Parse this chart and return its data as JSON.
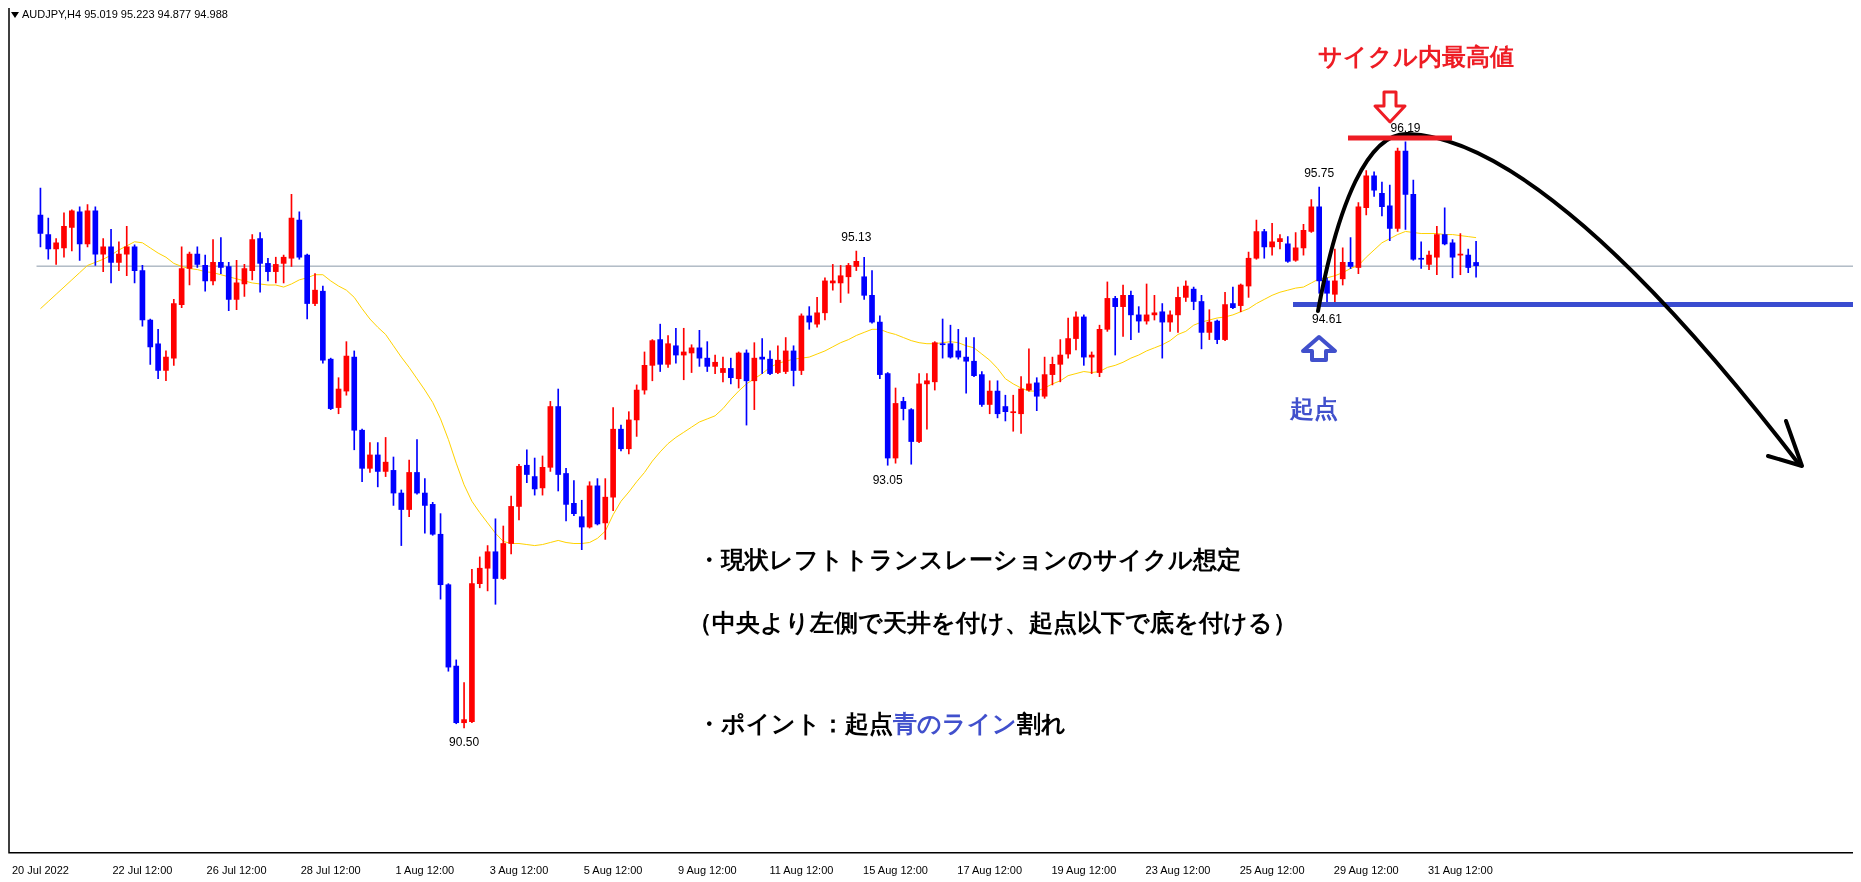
{
  "chart_data": {
    "type": "candlestick",
    "title": "AUDJPY,H4 95.019 95.223 94.877 94.988",
    "tick_labels": "x",
    "categories": [
      "20 Jul 2022",
      null,
      null,
      null,
      null,
      null,
      null,
      null,
      null,
      null,
      null,
      null,
      null,
      "22 Jul 12:00",
      null,
      null,
      null,
      null,
      null,
      null,
      null,
      null,
      null,
      null,
      null,
      "26 Jul 12:00",
      null,
      null,
      null,
      null,
      null,
      null,
      null,
      null,
      null,
      null,
      null,
      "28 Jul 12:00",
      null,
      null,
      null,
      null,
      null,
      null,
      null,
      null,
      null,
      null,
      null,
      "1 Aug 12:00",
      null,
      null,
      null,
      null,
      null,
      null,
      null,
      null,
      null,
      null,
      null,
      "3 Aug 12:00",
      null,
      null,
      null,
      null,
      null,
      null,
      null,
      null,
      null,
      null,
      null,
      "5 Aug 12:00",
      null,
      null,
      null,
      null,
      null,
      null,
      null,
      null,
      null,
      null,
      null,
      "9 Aug 12:00",
      null,
      null,
      null,
      null,
      null,
      null,
      null,
      null,
      null,
      null,
      null,
      "11 Aug 12:00",
      null,
      null,
      null,
      null,
      null,
      null,
      null,
      null,
      null,
      null,
      null,
      "15 Aug 12:00",
      null,
      null,
      null,
      null,
      null,
      null,
      null,
      null,
      null,
      null,
      null,
      "17 Aug 12:00",
      null,
      null,
      null,
      null,
      null,
      null,
      null,
      null,
      null,
      null,
      null,
      "19 Aug 12:00",
      null,
      null,
      null,
      null,
      null,
      null,
      null,
      null,
      null,
      null,
      null,
      "23 Aug 12:00",
      null,
      null,
      null,
      null,
      null,
      null,
      null,
      null,
      null,
      null,
      null,
      "25 Aug 12:00",
      null,
      null,
      null,
      null,
      null,
      null,
      null,
      null,
      null,
      null,
      null,
      "29 Aug 12:00",
      null,
      null,
      null,
      null,
      null,
      null,
      null,
      null,
      null,
      null,
      null,
      "31 Aug 12:00",
      null,
      null
    ],
    "ohlc": [
      [
        95.48,
        95.74,
        95.17,
        95.3
      ],
      [
        95.29,
        95.45,
        95.05,
        95.15
      ],
      [
        95.15,
        95.25,
        95.0,
        95.21
      ],
      [
        95.16,
        95.5,
        95.07,
        95.37
      ],
      [
        95.36,
        95.53,
        95.13,
        95.52
      ],
      [
        95.51,
        95.56,
        95.04,
        95.2
      ],
      [
        95.2,
        95.58,
        95.17,
        95.52
      ],
      [
        95.52,
        95.56,
        94.99,
        95.1
      ],
      [
        95.1,
        95.25,
        94.93,
        95.17
      ],
      [
        95.17,
        95.34,
        94.82,
        95.02
      ],
      [
        95.02,
        95.22,
        94.94,
        95.1
      ],
      [
        95.1,
        95.37,
        94.89,
        95.17
      ],
      [
        95.17,
        95.19,
        94.82,
        94.94
      ],
      [
        94.94,
        94.99,
        94.4,
        94.46
      ],
      [
        94.46,
        94.47,
        94.03,
        94.2
      ],
      [
        94.23,
        94.37,
        93.89,
        93.97
      ],
      [
        93.97,
        94.16,
        93.87,
        94.1
      ],
      [
        94.09,
        94.66,
        94.02,
        94.62
      ],
      [
        94.61,
        95.17,
        94.58,
        94.96
      ],
      [
        94.96,
        95.12,
        94.8,
        95.1
      ],
      [
        95.1,
        95.17,
        94.97,
        95.0
      ],
      [
        94.99,
        95.09,
        94.74,
        94.84
      ],
      [
        94.84,
        95.24,
        94.8,
        95.02
      ],
      [
        95.02,
        95.26,
        94.91,
        94.97
      ],
      [
        94.98,
        95.02,
        94.55,
        94.66
      ],
      [
        94.66,
        95.04,
        94.56,
        94.82
      ],
      [
        94.81,
        95.0,
        94.69,
        94.96
      ],
      [
        94.94,
        95.29,
        94.85,
        95.24
      ],
      [
        95.25,
        95.31,
        94.73,
        95.01
      ],
      [
        95.01,
        95.06,
        94.84,
        94.93
      ],
      [
        94.93,
        95.07,
        94.82,
        95.0
      ],
      [
        95.01,
        95.09,
        94.82,
        95.07
      ],
      [
        95.06,
        95.68,
        94.98,
        95.45
      ],
      [
        95.43,
        95.51,
        95.05,
        95.07
      ],
      [
        95.09,
        95.1,
        94.47,
        94.62
      ],
      [
        94.62,
        94.91,
        94.6,
        94.75
      ],
      [
        94.74,
        94.79,
        94.04,
        94.07
      ],
      [
        94.08,
        94.09,
        93.59,
        93.6
      ],
      [
        93.61,
        93.9,
        93.55,
        93.79
      ],
      [
        93.77,
        94.25,
        93.73,
        94.11
      ],
      [
        94.1,
        94.16,
        93.2,
        93.39
      ],
      [
        93.39,
        93.4,
        92.89,
        93.02
      ],
      [
        93.02,
        93.27,
        92.98,
        93.15
      ],
      [
        93.15,
        93.27,
        92.84,
        92.99
      ],
      [
        92.99,
        93.32,
        92.94,
        93.08
      ],
      [
        93.0,
        93.13,
        92.66,
        92.78
      ],
      [
        92.78,
        92.81,
        92.27,
        92.62
      ],
      [
        92.62,
        93.1,
        92.55,
        92.98
      ],
      [
        92.98,
        93.3,
        92.77,
        92.78
      ],
      [
        92.78,
        92.92,
        92.39,
        92.66
      ],
      [
        92.67,
        92.69,
        92.37,
        92.38
      ],
      [
        92.38,
        92.58,
        91.75,
        91.89
      ],
      [
        91.89,
        91.9,
        91.05,
        91.09
      ],
      [
        91.1,
        91.16,
        90.54,
        90.55
      ],
      [
        90.55,
        90.94,
        90.5,
        90.58
      ],
      [
        90.56,
        92.04,
        90.55,
        91.9
      ],
      [
        91.9,
        92.16,
        91.86,
        92.05
      ],
      [
        92.05,
        92.27,
        91.83,
        92.21
      ],
      [
        92.21,
        92.53,
        91.7,
        91.95
      ],
      [
        91.95,
        92.46,
        91.94,
        92.29
      ],
      [
        92.29,
        92.75,
        92.19,
        92.65
      ],
      [
        92.65,
        93.06,
        92.52,
        93.04
      ],
      [
        93.05,
        93.2,
        92.88,
        92.96
      ],
      [
        92.94,
        93.12,
        92.76,
        92.82
      ],
      [
        92.83,
        93.14,
        92.76,
        93.03
      ],
      [
        93.03,
        93.67,
        92.99,
        93.62
      ],
      [
        93.62,
        93.79,
        92.8,
        92.96
      ],
      [
        92.97,
        93.02,
        92.51,
        92.67
      ],
      [
        92.68,
        92.9,
        92.56,
        92.58
      ],
      [
        92.55,
        92.71,
        92.23,
        92.45
      ],
      [
        92.45,
        92.89,
        92.44,
        92.85
      ],
      [
        92.85,
        92.92,
        92.47,
        92.48
      ],
      [
        92.49,
        92.92,
        92.33,
        92.74
      ],
      [
        92.74,
        93.61,
        92.61,
        93.4
      ],
      [
        93.4,
        93.44,
        93.19,
        93.21
      ],
      [
        93.21,
        93.57,
        93.16,
        93.49
      ],
      [
        93.49,
        93.83,
        93.33,
        93.78
      ],
      [
        93.78,
        94.15,
        93.74,
        94.02
      ],
      [
        94.02,
        94.27,
        93.87,
        94.26
      ],
      [
        94.27,
        94.42,
        93.96,
        94.03
      ],
      [
        94.03,
        94.31,
        94.0,
        94.23
      ],
      [
        94.21,
        94.38,
        94.04,
        94.12
      ],
      [
        94.12,
        94.38,
        93.88,
        94.15
      ],
      [
        94.14,
        94.22,
        93.95,
        94.19
      ],
      [
        94.19,
        94.36,
        94.01,
        94.09
      ],
      [
        94.09,
        94.25,
        93.96,
        94.01
      ],
      [
        94.01,
        94.12,
        93.94,
        94.05
      ],
      [
        93.95,
        94.1,
        93.86,
        93.99
      ],
      [
        93.99,
        94.09,
        93.84,
        93.9
      ],
      [
        93.89,
        94.15,
        93.8,
        94.14
      ],
      [
        94.14,
        94.17,
        93.44,
        93.87
      ],
      [
        93.87,
        94.24,
        93.59,
        94.09
      ],
      [
        94.1,
        94.28,
        93.94,
        94.08
      ],
      [
        94.08,
        94.16,
        93.93,
        93.94
      ],
      [
        93.95,
        94.21,
        93.94,
        94.07
      ],
      [
        93.96,
        94.29,
        93.94,
        94.16
      ],
      [
        94.16,
        94.21,
        93.82,
        93.97
      ],
      [
        93.97,
        94.52,
        93.93,
        94.5
      ],
      [
        94.5,
        94.59,
        94.37,
        94.44
      ],
      [
        94.42,
        94.68,
        94.39,
        94.53
      ],
      [
        94.53,
        94.87,
        94.46,
        94.84
      ],
      [
        94.82,
        95.0,
        94.75,
        94.84
      ],
      [
        94.82,
        94.99,
        94.63,
        94.89
      ],
      [
        94.88,
        95.01,
        94.72,
        94.99
      ],
      [
        94.98,
        95.13,
        94.94,
        95.03
      ],
      [
        94.88,
        95.07,
        94.66,
        94.7
      ],
      [
        94.7,
        94.94,
        94.43,
        94.44
      ],
      [
        94.44,
        94.5,
        93.89,
        93.93
      ],
      [
        93.94,
        93.95,
        93.05,
        93.12
      ],
      [
        93.12,
        93.8,
        93.07,
        93.65
      ],
      [
        93.67,
        93.71,
        93.49,
        93.6
      ],
      [
        93.59,
        93.6,
        93.06,
        93.28
      ],
      [
        93.28,
        93.94,
        93.27,
        93.84
      ],
      [
        93.84,
        93.94,
        93.4,
        93.87
      ],
      [
        93.86,
        94.25,
        93.78,
        94.24
      ],
      [
        94.23,
        94.47,
        94.09,
        94.22
      ],
      [
        94.23,
        94.41,
        94.09,
        94.1
      ],
      [
        94.16,
        94.37,
        94.08,
        94.1
      ],
      [
        94.1,
        94.29,
        93.75,
        94.06
      ],
      [
        94.06,
        94.29,
        93.91,
        93.92
      ],
      [
        93.93,
        93.96,
        93.62,
        93.64
      ],
      [
        93.64,
        93.87,
        93.55,
        93.77
      ],
      [
        93.77,
        93.87,
        93.51,
        93.55
      ],
      [
        93.62,
        93.73,
        93.48,
        93.57
      ],
      [
        93.56,
        93.73,
        93.38,
        93.57
      ],
      [
        93.55,
        93.91,
        93.36,
        93.79
      ],
      [
        93.78,
        94.18,
        93.77,
        93.84
      ],
      [
        93.85,
        93.9,
        93.58,
        93.72
      ],
      [
        93.72,
        94.1,
        93.7,
        93.93
      ],
      [
        93.93,
        94.1,
        93.83,
        94.03
      ],
      [
        94.03,
        94.27,
        93.86,
        94.12
      ],
      [
        94.13,
        94.48,
        94.09,
        94.28
      ],
      [
        94.28,
        94.54,
        94.17,
        94.49
      ],
      [
        94.49,
        94.51,
        94.02,
        94.1
      ],
      [
        94.1,
        94.15,
        93.94,
        94.12
      ],
      [
        93.95,
        94.41,
        93.91,
        94.37
      ],
      [
        94.37,
        94.83,
        94.35,
        94.67
      ],
      [
        94.67,
        94.69,
        94.12,
        94.59
      ],
      [
        94.59,
        94.8,
        94.3,
        94.7
      ],
      [
        94.7,
        94.74,
        94.27,
        94.51
      ],
      [
        94.51,
        94.59,
        94.34,
        94.45
      ],
      [
        94.45,
        94.81,
        94.42,
        94.51
      ],
      [
        94.51,
        94.7,
        94.46,
        94.53
      ],
      [
        94.54,
        94.62,
        94.09,
        94.44
      ],
      [
        94.44,
        94.55,
        94.35,
        94.51
      ],
      [
        94.51,
        94.78,
        94.34,
        94.68
      ],
      [
        94.68,
        94.84,
        94.64,
        94.79
      ],
      [
        94.76,
        94.78,
        94.56,
        94.64
      ],
      [
        94.64,
        94.7,
        94.18,
        94.34
      ],
      [
        94.34,
        94.56,
        94.27,
        94.44
      ],
      [
        94.45,
        94.46,
        94.23,
        94.27
      ],
      [
        94.27,
        94.73,
        94.26,
        94.61
      ],
      [
        94.62,
        94.78,
        94.57,
        94.58
      ],
      [
        94.6,
        94.81,
        94.54,
        94.8
      ],
      [
        94.79,
        95.12,
        94.68,
        95.06
      ],
      [
        95.06,
        95.43,
        95.05,
        95.32
      ],
      [
        95.32,
        95.34,
        95.06,
        95.17
      ],
      [
        95.17,
        95.4,
        95.09,
        95.22
      ],
      [
        95.22,
        95.29,
        95.15,
        95.25
      ],
      [
        95.2,
        95.27,
        95.02,
        95.03
      ],
      [
        95.04,
        95.31,
        95.03,
        95.16
      ],
      [
        95.16,
        95.39,
        95.09,
        95.33
      ],
      [
        95.32,
        95.63,
        95.31,
        95.56
      ],
      [
        95.56,
        95.75,
        94.72,
        94.84
      ],
      [
        94.84,
        94.87,
        94.61,
        94.72
      ],
      [
        94.71,
        95.15,
        94.63,
        94.84
      ],
      [
        94.86,
        95.16,
        94.8,
        95.02
      ],
      [
        95.02,
        95.26,
        94.96,
        94.98
      ],
      [
        94.97,
        95.6,
        94.91,
        95.56
      ],
      [
        95.55,
        95.91,
        95.48,
        95.86
      ],
      [
        95.86,
        95.9,
        95.66,
        95.72
      ],
      [
        95.69,
        95.8,
        95.47,
        95.56
      ],
      [
        95.57,
        95.77,
        95.23,
        95.35
      ],
      [
        95.35,
        96.13,
        95.32,
        96.1
      ],
      [
        96.1,
        96.19,
        95.34,
        95.68
      ],
      [
        95.68,
        95.82,
        95.04,
        95.05
      ],
      [
        95.06,
        95.22,
        94.96,
        95.05
      ],
      [
        95.0,
        95.13,
        94.95,
        95.09
      ],
      [
        95.07,
        95.37,
        94.9,
        95.29
      ],
      [
        95.29,
        95.55,
        95.19,
        95.2
      ],
      [
        95.21,
        95.24,
        94.87,
        95.07
      ],
      [
        95.09,
        95.3,
        94.9,
        95.1
      ],
      [
        95.09,
        95.15,
        94.92,
        94.97
      ],
      [
        95.019,
        95.223,
        94.877,
        94.988
      ]
    ],
    "colors": [
      "#0000ff",
      "#0000ff",
      "#ff0000",
      "#ff0000",
      "#ff0000",
      "#0000ff",
      "#ff0000",
      "#0000ff",
      "#ff0000",
      "#0000ff",
      "#ff0000",
      "#ff0000",
      "#0000ff",
      "#0000ff",
      "#0000ff",
      "#0000ff",
      "#ff0000",
      "#ff0000",
      "#ff0000",
      "#ff0000",
      "#0000ff",
      "#0000ff",
      "#ff0000",
      "#0000ff",
      "#0000ff",
      "#ff0000",
      "#ff0000",
      "#ff0000",
      "#0000ff",
      "#0000ff",
      "#ff0000",
      "#ff0000",
      "#ff0000",
      "#0000ff",
      "#0000ff",
      "#ff0000",
      "#0000ff",
      "#0000ff",
      "#ff0000",
      "#ff0000",
      "#0000ff",
      "#0000ff",
      "#ff0000",
      "#0000ff",
      "#ff0000",
      "#0000ff",
      "#0000ff",
      "#ff0000",
      "#0000ff",
      "#0000ff",
      "#0000ff",
      "#0000ff",
      "#0000ff",
      "#0000ff",
      "#ff0000",
      "#ff0000",
      "#ff0000",
      "#ff0000",
      "#0000ff",
      "#ff0000",
      "#ff0000",
      "#ff0000",
      "#0000ff",
      "#0000ff",
      "#ff0000",
      "#ff0000",
      "#0000ff",
      "#0000ff",
      "#0000ff",
      "#0000ff",
      "#ff0000",
      "#0000ff",
      "#ff0000",
      "#ff0000",
      "#0000ff",
      "#ff0000",
      "#ff0000",
      "#ff0000",
      "#ff0000",
      "#0000ff",
      "#ff0000",
      "#0000ff",
      "#ff0000",
      "#ff0000",
      "#0000ff",
      "#0000ff",
      "#ff0000",
      "#ff0000",
      "#0000ff",
      "#ff0000",
      "#0000ff",
      "#ff0000",
      "#0000ff",
      "#0000ff",
      "#ff0000",
      "#ff0000",
      "#0000ff",
      "#ff0000",
      "#0000ff",
      "#ff0000",
      "#ff0000",
      "#ff0000",
      "#ff0000",
      "#ff0000",
      "#ff0000",
      "#0000ff",
      "#0000ff",
      "#0000ff",
      "#0000ff",
      "#ff0000",
      "#0000ff",
      "#0000ff",
      "#ff0000",
      "#ff0000",
      "#ff0000",
      "#0000ff",
      "#0000ff",
      "#0000ff",
      "#0000ff",
      "#0000ff",
      "#0000ff",
      "#ff0000",
      "#0000ff",
      "#0000ff",
      "#ff0000",
      "#ff0000",
      "#ff0000",
      "#0000ff",
      "#ff0000",
      "#ff0000",
      "#ff0000",
      "#ff0000",
      "#ff0000",
      "#0000ff",
      "#ff0000",
      "#ff0000",
      "#ff0000",
      "#0000ff",
      "#ff0000",
      "#0000ff",
      "#0000ff",
      "#ff0000",
      "#ff0000",
      "#0000ff",
      "#ff0000",
      "#ff0000",
      "#ff0000",
      "#0000ff",
      "#0000ff",
      "#ff0000",
      "#0000ff",
      "#ff0000",
      "#0000ff",
      "#ff0000",
      "#ff0000",
      "#ff0000",
      "#0000ff",
      "#ff0000",
      "#ff0000",
      "#0000ff",
      "#ff0000",
      "#ff0000",
      "#ff0000",
      "#0000ff",
      "#0000ff",
      "#ff0000",
      "#ff0000",
      "#0000ff",
      "#ff0000",
      "#ff0000",
      "#0000ff",
      "#0000ff",
      "#0000ff",
      "#ff0000",
      "#0000ff",
      "#0000ff",
      "#0000ff",
      "#ff0000",
      "#ff0000",
      "#0000ff",
      "#0000ff",
      "#ff0000",
      "#0000ff",
      "#0000ff"
    ],
    "series": [
      {
        "type": "line",
        "color": "#ffd200",
        "values": [
          94.57,
          94.64,
          94.71,
          94.78,
          94.85,
          94.92,
          94.99,
          95.02,
          95.05,
          95.09,
          95.14,
          95.18,
          95.22,
          95.21,
          95.16,
          95.11,
          95.07,
          95.01,
          94.98,
          94.96,
          94.95,
          94.93,
          94.92,
          94.9,
          94.88,
          94.86,
          94.84,
          94.82,
          94.81,
          94.8,
          94.8,
          94.78,
          94.81,
          94.85,
          94.87,
          94.9,
          94.9,
          94.84,
          94.79,
          94.75,
          94.68,
          94.57,
          94.47,
          94.39,
          94.32,
          94.21,
          94.1,
          94.0,
          93.89,
          93.78,
          93.66,
          93.5,
          93.3,
          93.07,
          92.86,
          92.7,
          92.59,
          92.49,
          92.39,
          92.31,
          92.29,
          92.29,
          92.28,
          92.27,
          92.28,
          92.3,
          92.32,
          92.3,
          92.29,
          92.29,
          92.3,
          92.34,
          92.41,
          92.57,
          92.7,
          92.79,
          92.89,
          92.98,
          93.09,
          93.18,
          93.26,
          93.32,
          93.37,
          93.42,
          93.47,
          93.5,
          93.53,
          93.6,
          93.69,
          93.77,
          93.84,
          93.89,
          93.94,
          94.0,
          94.04,
          94.06,
          94.08,
          94.09,
          94.1,
          94.13,
          94.16,
          94.2,
          94.24,
          94.27,
          94.31,
          94.34,
          94.37,
          94.37,
          94.34,
          94.32,
          94.29,
          94.26,
          94.24,
          94.23,
          94.23,
          94.24,
          94.25,
          94.24,
          94.21,
          94.19,
          94.13,
          94.07,
          93.99,
          93.89,
          93.84,
          93.8,
          93.77,
          93.77,
          93.8,
          93.84,
          93.87,
          93.92,
          93.94,
          93.96,
          93.95,
          93.96,
          94.0,
          94.02,
          94.05,
          94.09,
          94.12,
          94.16,
          94.19,
          94.22,
          94.26,
          94.32,
          94.35,
          94.41,
          94.44,
          94.46,
          94.48,
          94.49,
          94.51,
          94.54,
          94.57,
          94.62,
          94.66,
          94.7,
          94.73,
          94.75,
          94.77,
          94.78,
          94.82,
          94.86,
          94.87,
          94.89,
          94.92,
          94.96,
          94.99,
          95.07,
          95.14,
          95.21,
          95.25,
          95.29,
          95.32,
          95.31,
          95.3,
          95.3,
          95.3,
          95.29,
          95.29,
          95.28,
          95.27,
          95.26
        ]
      }
    ],
    "ref_lines": [
      {
        "axis": "y",
        "value": 94.988,
        "color": "#8a99a8"
      },
      {
        "axis": "y",
        "value": 94.61,
        "color": "#3a4cd0"
      }
    ],
    "annotations": [
      {
        "text": "95.13",
        "y": 95.13
      },
      {
        "text": "93.05",
        "y": 93.05
      },
      {
        "text": "90.50",
        "y": 90.5
      },
      {
        "text": "95.75",
        "y": 95.75
      },
      {
        "text": "96.19",
        "y": 96.19
      },
      {
        "text": "94.61",
        "y": 94.61
      },
      "サイクル内最高値",
      "起点",
      "・現状レフトトランスレーションのサイクル想定",
      "（中央より左側で天井を付け、起点以下で底を付ける）",
      "・ポイント：起点",
      "青のライン",
      "割れ"
    ]
  }
}
